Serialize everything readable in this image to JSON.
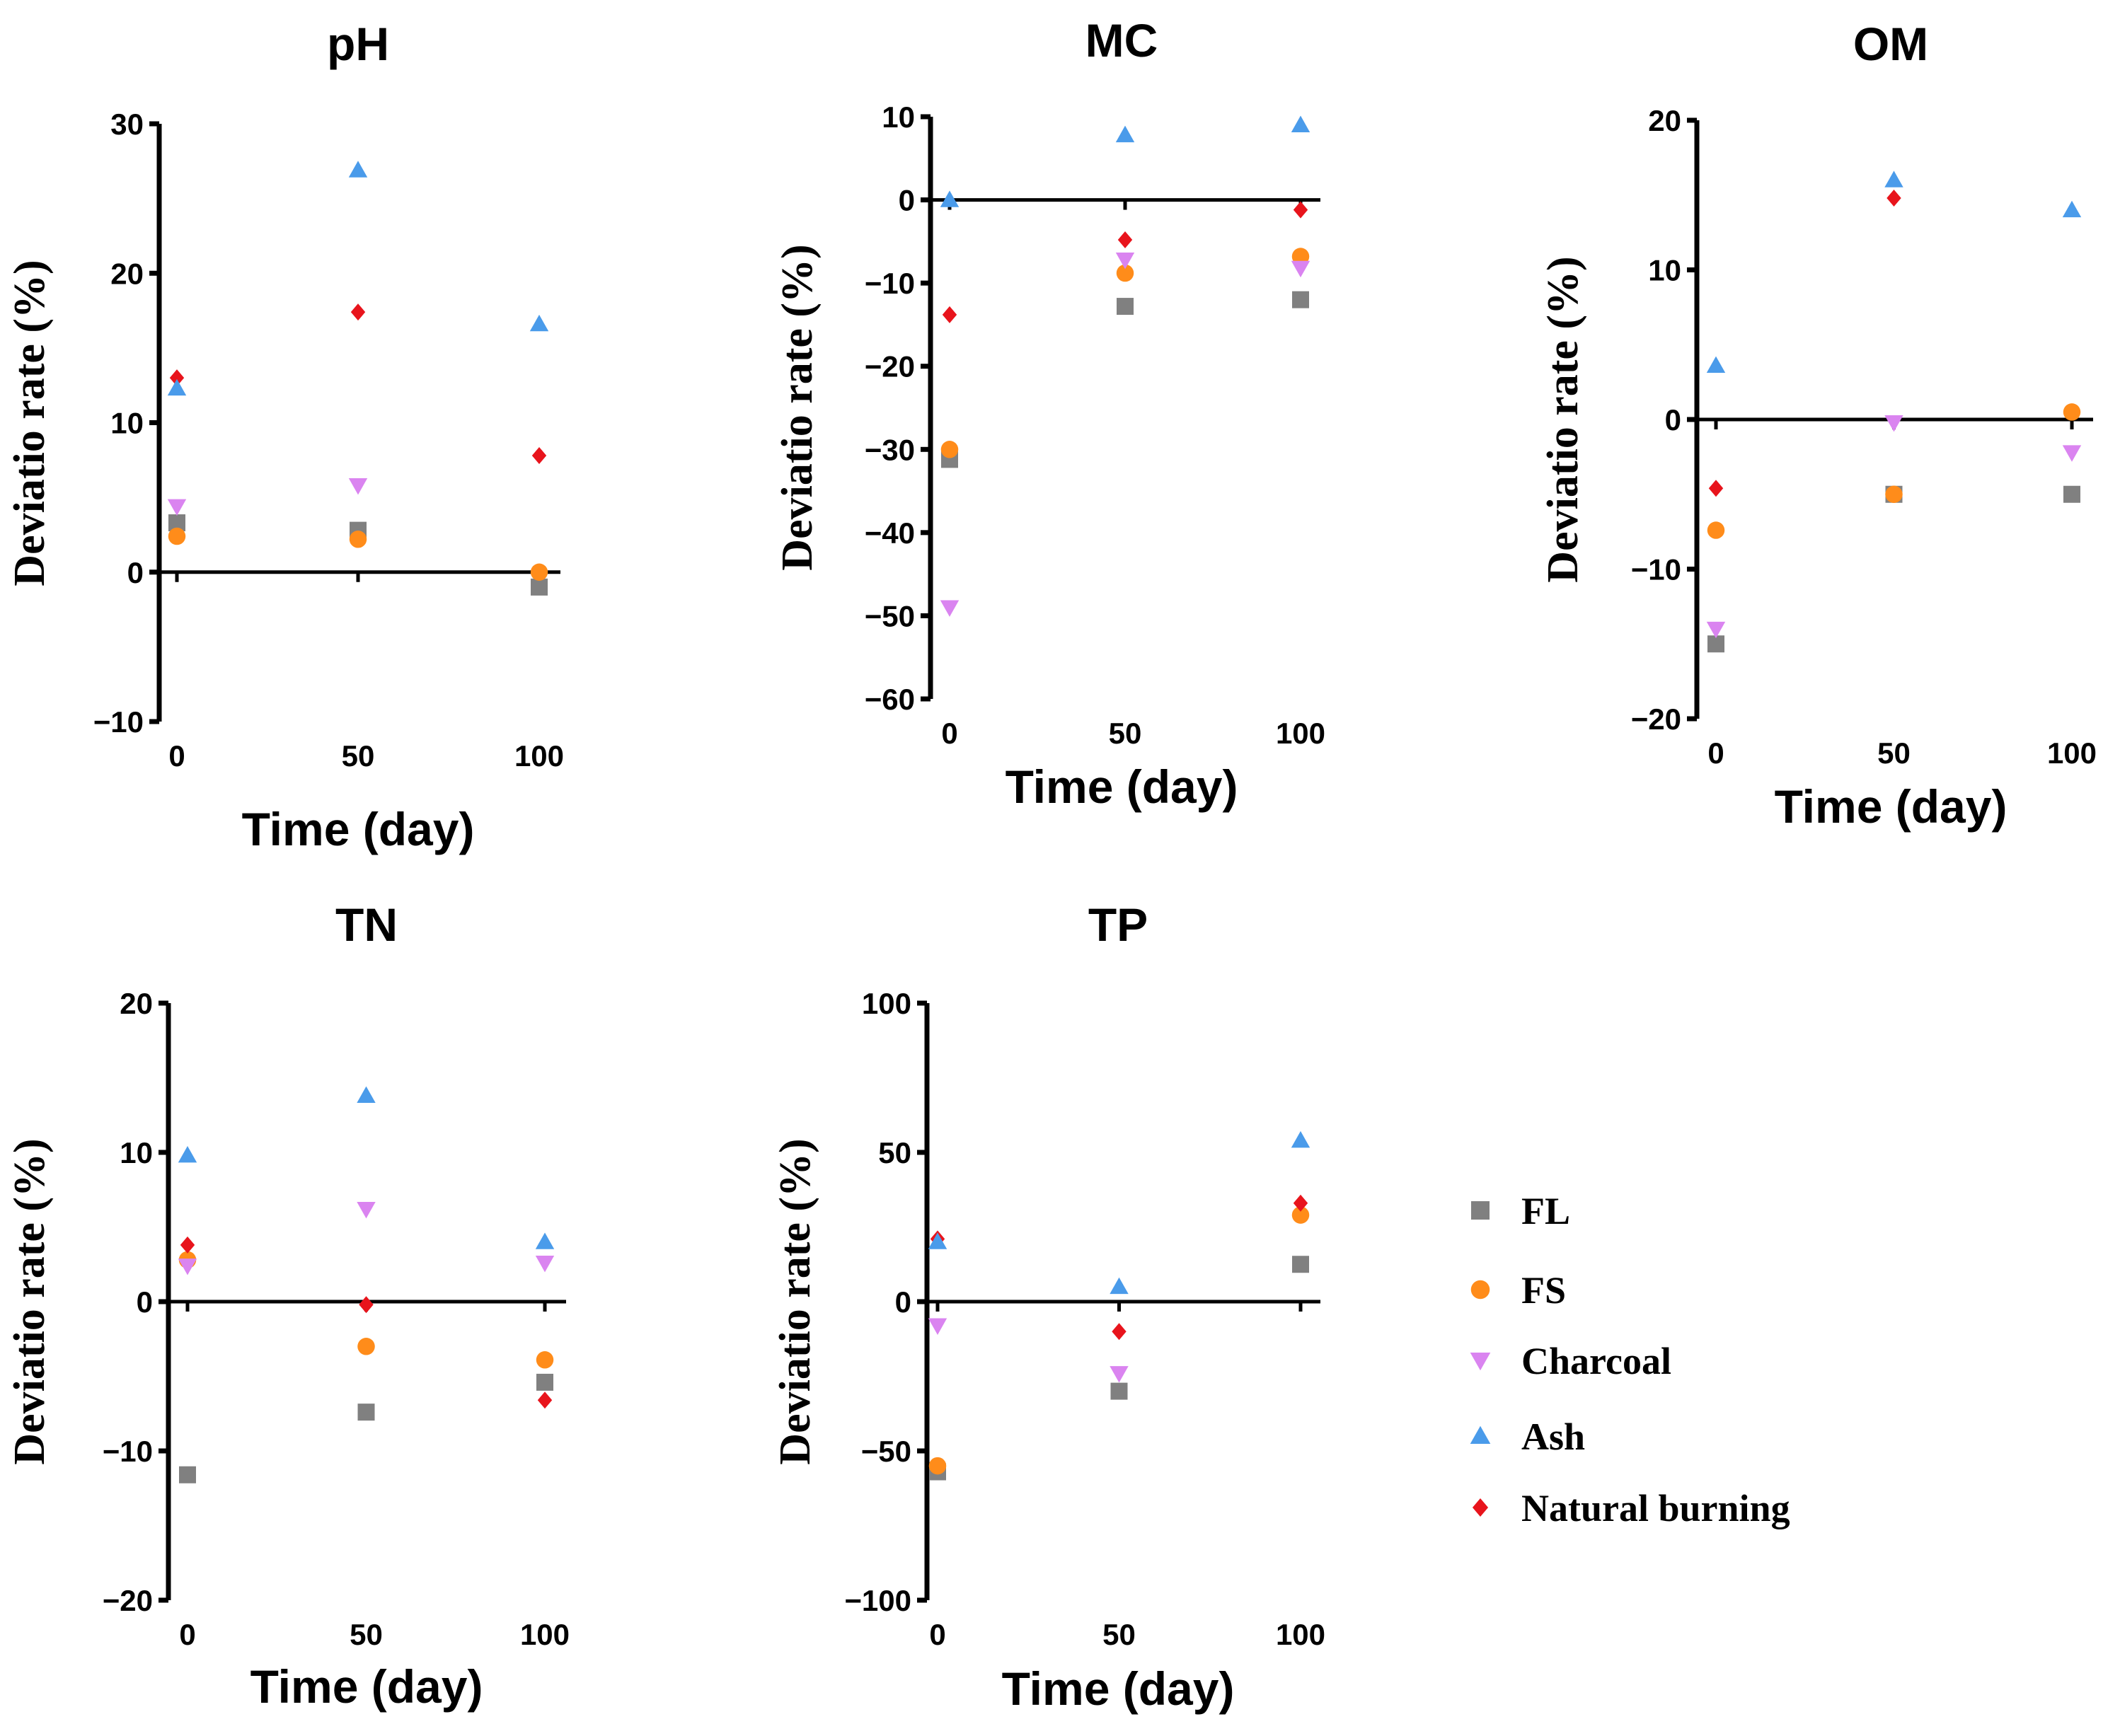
{
  "legend": [
    {
      "key": "FL",
      "label": "FL",
      "shape": "square",
      "color": "#808080"
    },
    {
      "key": "FS",
      "label": "FS",
      "shape": "circle",
      "color": "#FF8C1A"
    },
    {
      "key": "Charcoal",
      "label": "Charcoal",
      "shape": "triangle-down",
      "color": "#DA84F0"
    },
    {
      "key": "Ash",
      "label": "Ash",
      "shape": "triangle-up",
      "color": "#4A9BEA"
    },
    {
      "key": "Natural burning",
      "label": "Natural burning",
      "shape": "diamond",
      "color": "#E8141C"
    }
  ],
  "chart_data": [
    {
      "type": "scatter",
      "title": "pH",
      "xlabel": "Time (day)",
      "ylabel": "Deviatio rate (%)",
      "x": [
        0,
        50,
        100
      ],
      "xticks": [
        "0",
        "50",
        "100"
      ],
      "ylim": [
        -10,
        30
      ],
      "yticks": [
        -10,
        0,
        10,
        20,
        30
      ],
      "ytick_labels": [
        "−10",
        "0",
        "10",
        "20",
        "30"
      ],
      "series": [
        {
          "name": "FL",
          "values": [
            3.3,
            2.8,
            -1.0
          ]
        },
        {
          "name": "FS",
          "values": [
            2.4,
            2.2,
            0.0
          ]
        },
        {
          "name": "Charcoal",
          "values": [
            4.4,
            5.8,
            null
          ]
        },
        {
          "name": "Ash",
          "values": [
            12.3,
            26.9,
            16.6
          ]
        },
        {
          "name": "Natural burning",
          "values": [
            13.0,
            17.4,
            7.8
          ]
        }
      ]
    },
    {
      "type": "scatter",
      "title": "MC",
      "xlabel": "Time (day)",
      "ylabel": "Deviatio rate (%)",
      "x": [
        0,
        50,
        100
      ],
      "xticks": [
        "0",
        "50",
        "100"
      ],
      "ylim": [
        -60,
        10
      ],
      "yticks": [
        -60,
        -50,
        -40,
        -30,
        -20,
        -10,
        0,
        10
      ],
      "ytick_labels": [
        "−60",
        "−50",
        "−40",
        "−30",
        "−20",
        "−10",
        "0",
        "10"
      ],
      "series": [
        {
          "name": "FL",
          "values": [
            -31.2,
            -12.8,
            -12.0
          ]
        },
        {
          "name": "FS",
          "values": [
            -30.0,
            -8.8,
            -6.8
          ]
        },
        {
          "name": "Charcoal",
          "values": [
            -49.0,
            -7.2,
            -8.2
          ]
        },
        {
          "name": "Ash",
          "values": [
            0.0,
            7.8,
            9.0
          ]
        },
        {
          "name": "Natural burning",
          "values": [
            -13.8,
            -4.8,
            -1.2
          ]
        }
      ]
    },
    {
      "type": "scatter",
      "title": "OM",
      "xlabel": "Time (day)",
      "ylabel": "Deviatio rate (%)",
      "x": [
        0,
        50,
        100
      ],
      "xticks": [
        "0",
        "50",
        "100"
      ],
      "ylim": [
        -20,
        20
      ],
      "yticks": [
        -20,
        -10,
        0,
        10,
        20
      ],
      "ytick_labels": [
        "−20",
        "−10",
        "0",
        "10",
        "20"
      ],
      "series": [
        {
          "name": "FL",
          "values": [
            -15.0,
            -5.0,
            -5.0
          ]
        },
        {
          "name": "FS",
          "values": [
            -7.4,
            -5.0,
            0.5
          ]
        },
        {
          "name": "Charcoal",
          "values": [
            -14.0,
            -0.2,
            -2.2
          ]
        },
        {
          "name": "Ash",
          "values": [
            3.6,
            16.0,
            14.0
          ]
        },
        {
          "name": "Natural burning",
          "values": [
            -4.6,
            14.8,
            null
          ]
        }
      ]
    },
    {
      "type": "scatter",
      "title": "TN",
      "xlabel": "Time (day)",
      "ylabel": "Deviatio rate (%)",
      "x": [
        0,
        50,
        100
      ],
      "xticks": [
        "0",
        "50",
        "100"
      ],
      "ylim": [
        -20,
        20
      ],
      "yticks": [
        -20,
        -10,
        0,
        10,
        20
      ],
      "ytick_labels": [
        "−20",
        "−10",
        "0",
        "10",
        "20"
      ],
      "series": [
        {
          "name": "FL",
          "values": [
            -11.6,
            -7.4,
            -5.4
          ]
        },
        {
          "name": "FS",
          "values": [
            2.8,
            -3.0,
            -3.9
          ]
        },
        {
          "name": "Charcoal",
          "values": [
            2.4,
            6.2,
            2.6
          ]
        },
        {
          "name": "Ash",
          "values": [
            9.8,
            13.8,
            4.0
          ]
        },
        {
          "name": "Natural burning",
          "values": [
            3.8,
            -0.2,
            -6.6
          ]
        }
      ]
    },
    {
      "type": "scatter",
      "title": "TP",
      "xlabel": "Time (day)",
      "ylabel": "Deviatio rate (%)",
      "x": [
        0,
        50,
        100
      ],
      "xticks": [
        "0",
        "50",
        "100"
      ],
      "ylim": [
        -100,
        100
      ],
      "yticks": [
        -100,
        -50,
        0,
        50,
        100
      ],
      "ytick_labels": [
        "−100",
        "−50",
        "0",
        "50",
        "100"
      ],
      "series": [
        {
          "name": "FL",
          "values": [
            -57.0,
            -30.0,
            12.5
          ]
        },
        {
          "name": "FS",
          "values": [
            -55.0,
            null,
            29.0
          ]
        },
        {
          "name": "Charcoal",
          "values": [
            -8.0,
            -24.0,
            null
          ]
        },
        {
          "name": "Ash",
          "values": [
            20.0,
            5.0,
            54.0
          ]
        },
        {
          "name": "Natural burning",
          "values": [
            21.0,
            -10.0,
            33.0
          ]
        }
      ]
    }
  ]
}
